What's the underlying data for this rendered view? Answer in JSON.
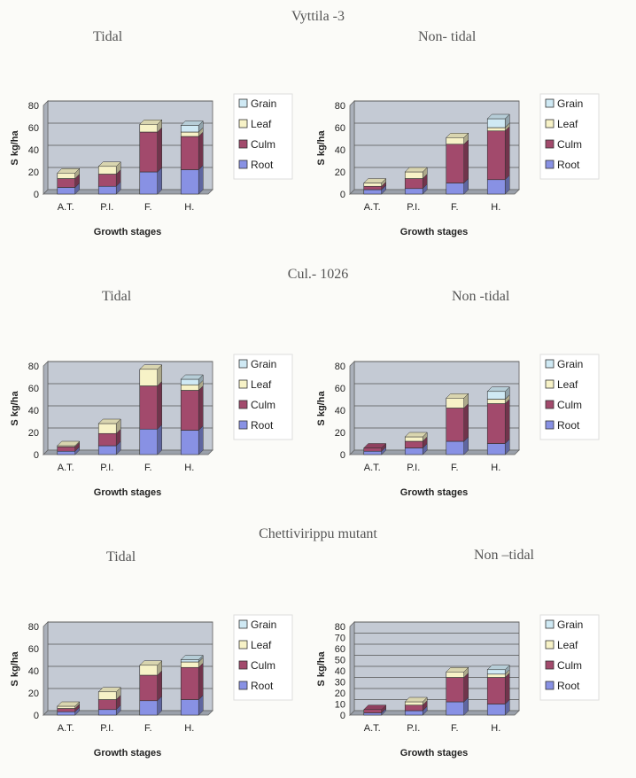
{
  "legend_colors": {
    "Grain": "#cfe9f4",
    "Leaf": "#f7f2c7",
    "Culm": "#a24a6c",
    "Root": "#8891e4"
  },
  "plot_bg": "#c4cad4",
  "sections": [
    {
      "title": "Vyttila -3",
      "left_label": "Tidal",
      "right_label": "Non- tidal"
    },
    {
      "title": "Cul.- 1026",
      "left_label": "Tidal",
      "right_label": "Non -tidal"
    },
    {
      "title": "Chettivirippu mutant",
      "left_label": "Tidal",
      "right_label": "Non –tidal"
    }
  ],
  "chart_data": [
    {
      "id": "c1",
      "type": "bar",
      "stacked": true,
      "categories": [
        "A.T.",
        "P.I.",
        "F.",
        "H."
      ],
      "xlabel": "Growth stages",
      "ylabel": "S kg/ha",
      "ylim": [
        0,
        80
      ],
      "yticks": [
        0,
        20,
        40,
        60,
        80
      ],
      "grid": true,
      "legend": "right",
      "series": [
        {
          "name": "Root",
          "values": [
            6,
            7,
            20,
            22
          ]
        },
        {
          "name": "Culm",
          "values": [
            8,
            11,
            36,
            30
          ]
        },
        {
          "name": "Leaf",
          "values": [
            5,
            7,
            7,
            4
          ]
        },
        {
          "name": "Grain",
          "values": [
            0,
            0,
            0,
            6
          ]
        }
      ]
    },
    {
      "id": "c2",
      "type": "bar",
      "stacked": true,
      "categories": [
        "A.T.",
        "P.I.",
        "F.",
        "H."
      ],
      "xlabel": "Growth stages",
      "ylabel": "S kg/ha",
      "ylim": [
        0,
        80
      ],
      "yticks": [
        0,
        20,
        40,
        60,
        80
      ],
      "grid": true,
      "legend": "right",
      "series": [
        {
          "name": "Root",
          "values": [
            4,
            5,
            10,
            13
          ]
        },
        {
          "name": "Culm",
          "values": [
            3,
            9,
            35,
            44
          ]
        },
        {
          "name": "Leaf",
          "values": [
            3,
            6,
            6,
            3
          ]
        },
        {
          "name": "Grain",
          "values": [
            0,
            0,
            0,
            8
          ]
        }
      ]
    },
    {
      "id": "c3",
      "type": "bar",
      "stacked": true,
      "categories": [
        "A.T.",
        "P.I.",
        "F.",
        "H."
      ],
      "xlabel": "Growth stages",
      "ylabel": "S kg/ha",
      "ylim": [
        0,
        80
      ],
      "yticks": [
        0,
        20,
        40,
        60,
        80
      ],
      "grid": true,
      "legend": "right",
      "series": [
        {
          "name": "Root",
          "values": [
            3,
            8,
            23,
            22
          ]
        },
        {
          "name": "Culm",
          "values": [
            4,
            11,
            39,
            36
          ]
        },
        {
          "name": "Leaf",
          "values": [
            1,
            9,
            15,
            5
          ]
        },
        {
          "name": "Grain",
          "values": [
            0,
            0,
            0,
            5
          ]
        }
      ]
    },
    {
      "id": "c4",
      "type": "bar",
      "stacked": true,
      "categories": [
        "A.T.",
        "P.I.",
        "F.",
        "H."
      ],
      "xlabel": "Growth stages",
      "ylabel": "S kg/ha",
      "ylim": [
        0,
        80
      ],
      "yticks": [
        0,
        20,
        40,
        60,
        80
      ],
      "grid": true,
      "legend": "right",
      "series": [
        {
          "name": "Root",
          "values": [
            3,
            6,
            12,
            10
          ]
        },
        {
          "name": "Culm",
          "values": [
            3,
            6,
            30,
            36
          ]
        },
        {
          "name": "Leaf",
          "values": [
            0,
            4,
            9,
            4
          ]
        },
        {
          "name": "Grain",
          "values": [
            0,
            0,
            0,
            7
          ]
        }
      ]
    },
    {
      "id": "c5",
      "type": "bar",
      "stacked": true,
      "categories": [
        "A.T.",
        "P.I.",
        "F.",
        "H."
      ],
      "xlabel": "Growth stages",
      "ylabel": "S kg/ha",
      "ylim": [
        0,
        80
      ],
      "yticks": [
        0,
        20,
        40,
        60,
        80
      ],
      "grid": true,
      "legend": "right",
      "series": [
        {
          "name": "Root",
          "values": [
            3,
            5,
            13,
            14
          ]
        },
        {
          "name": "Culm",
          "values": [
            3,
            9,
            23,
            29
          ]
        },
        {
          "name": "Leaf",
          "values": [
            2,
            7,
            9,
            5
          ]
        },
        {
          "name": "Grain",
          "values": [
            0,
            0,
            0,
            2
          ]
        }
      ]
    },
    {
      "id": "c6",
      "type": "bar",
      "stacked": true,
      "categories": [
        "A.T.",
        "P.I.",
        "F.",
        "H."
      ],
      "xlabel": "Growth stages",
      "ylabel": "S kg/ha",
      "ylim": [
        0,
        80
      ],
      "yticks": [
        0,
        10,
        20,
        30,
        40,
        50,
        60,
        70,
        80
      ],
      "grid": true,
      "legend": "right",
      "series": [
        {
          "name": "Root",
          "values": [
            2,
            4,
            12,
            10
          ]
        },
        {
          "name": "Culm",
          "values": [
            3,
            5,
            22,
            24
          ]
        },
        {
          "name": "Leaf",
          "values": [
            0,
            3,
            5,
            3
          ]
        },
        {
          "name": "Grain",
          "values": [
            0,
            0,
            0,
            4
          ]
        }
      ]
    }
  ]
}
